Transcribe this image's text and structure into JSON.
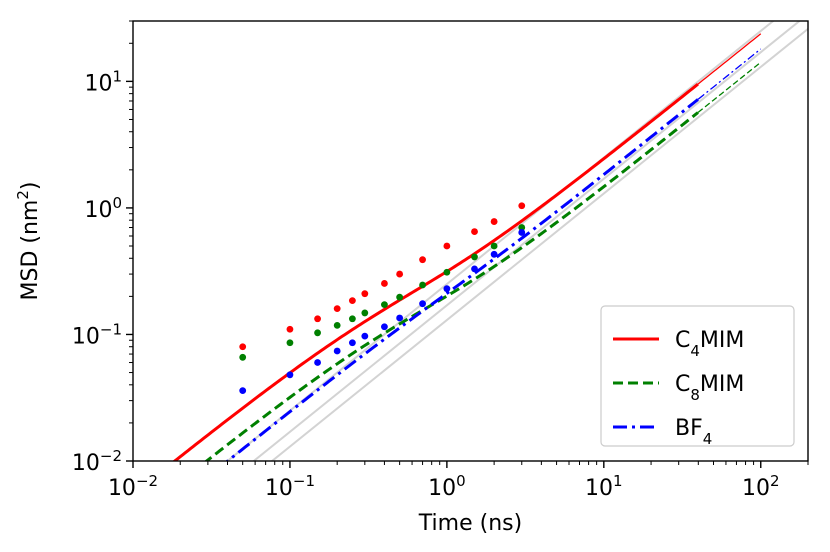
{
  "chart_data": {
    "type": "line",
    "xscale": "log",
    "yscale": "log",
    "xlim": [
      0.01,
      200
    ],
    "ylim": [
      0.01,
      30
    ],
    "xlabel": "Time (ns)",
    "ylabel_main": "MSD (nm",
    "ylabel_sup": "2",
    "ylabel_close": ")",
    "xticks": [
      {
        "value": 0.01,
        "base": "10",
        "exp": "−2"
      },
      {
        "value": 0.1,
        "base": "10",
        "exp": "−1"
      },
      {
        "value": 1,
        "base": "10",
        "exp": "0"
      },
      {
        "value": 10,
        "base": "10",
        "exp": "1"
      },
      {
        "value": 100,
        "base": "10",
        "exp": "2"
      }
    ],
    "yticks": [
      {
        "value": 0.01,
        "base": "10",
        "exp": "−2"
      },
      {
        "value": 0.1,
        "base": "10",
        "exp": "−1"
      },
      {
        "value": 1,
        "base": "10",
        "exp": "0"
      },
      {
        "value": 10,
        "base": "10",
        "exp": "1"
      }
    ],
    "legend_position": "bottom-right",
    "series": [
      {
        "name": "C4MIM",
        "label_pre": "C",
        "label_sub": "4",
        "label_post": "MIM",
        "color": "#ff0000",
        "linestyle": "solid",
        "model": {
          "D": 0.0395,
          "A": 0.079,
          "tau": 0.25
        },
        "points": [
          [
            0.05,
            0.08
          ],
          [
            0.1,
            0.11
          ],
          [
            0.15,
            0.133
          ],
          [
            0.2,
            0.16
          ],
          [
            0.25,
            0.185
          ],
          [
            0.3,
            0.21
          ],
          [
            0.4,
            0.253
          ],
          [
            0.5,
            0.3
          ],
          [
            0.7,
            0.39
          ],
          [
            1.0,
            0.5
          ],
          [
            1.5,
            0.65
          ],
          [
            2.0,
            0.78
          ],
          [
            3.0,
            1.04
          ]
        ]
      },
      {
        "name": "C8MIM",
        "label_pre": "C",
        "label_sub": "8",
        "label_post": "MIM",
        "color": "#008000",
        "linestyle": "dashed",
        "model": {
          "D": 0.0235,
          "A": 0.0625,
          "tau": 0.3
        },
        "points": [
          [
            0.05,
            0.066
          ],
          [
            0.1,
            0.086
          ],
          [
            0.15,
            0.103
          ],
          [
            0.2,
            0.118
          ],
          [
            0.25,
            0.133
          ],
          [
            0.3,
            0.148
          ],
          [
            0.4,
            0.172
          ],
          [
            0.5,
            0.197
          ],
          [
            0.7,
            0.246
          ],
          [
            1.0,
            0.31
          ],
          [
            1.5,
            0.41
          ],
          [
            2.0,
            0.5
          ],
          [
            3.0,
            0.7
          ]
        ]
      },
      {
        "name": "BF4",
        "label_pre": "BF",
        "label_sub": "4",
        "label_post": "",
        "color": "#0000ff",
        "linestyle": "dashdot",
        "model": {
          "D": 0.03,
          "A": 0.036,
          "tau": 0.5
        },
        "points": [
          [
            0.05,
            0.036
          ],
          [
            0.1,
            0.048
          ],
          [
            0.15,
            0.06
          ],
          [
            0.2,
            0.074
          ],
          [
            0.25,
            0.086
          ],
          [
            0.3,
            0.097
          ],
          [
            0.4,
            0.115
          ],
          [
            0.5,
            0.135
          ],
          [
            0.7,
            0.175
          ],
          [
            1.0,
            0.23
          ],
          [
            1.5,
            0.33
          ],
          [
            2.0,
            0.43
          ],
          [
            3.0,
            0.64
          ]
        ]
      }
    ],
    "reference_lines": [
      {
        "slope": 1,
        "coef": 0.25,
        "color": "#d3d3d3"
      },
      {
        "slope": 1,
        "coef": 0.17,
        "color": "#d3d3d3"
      },
      {
        "slope": 1,
        "coef": 0.13,
        "color": "#d3d3d3"
      }
    ]
  }
}
